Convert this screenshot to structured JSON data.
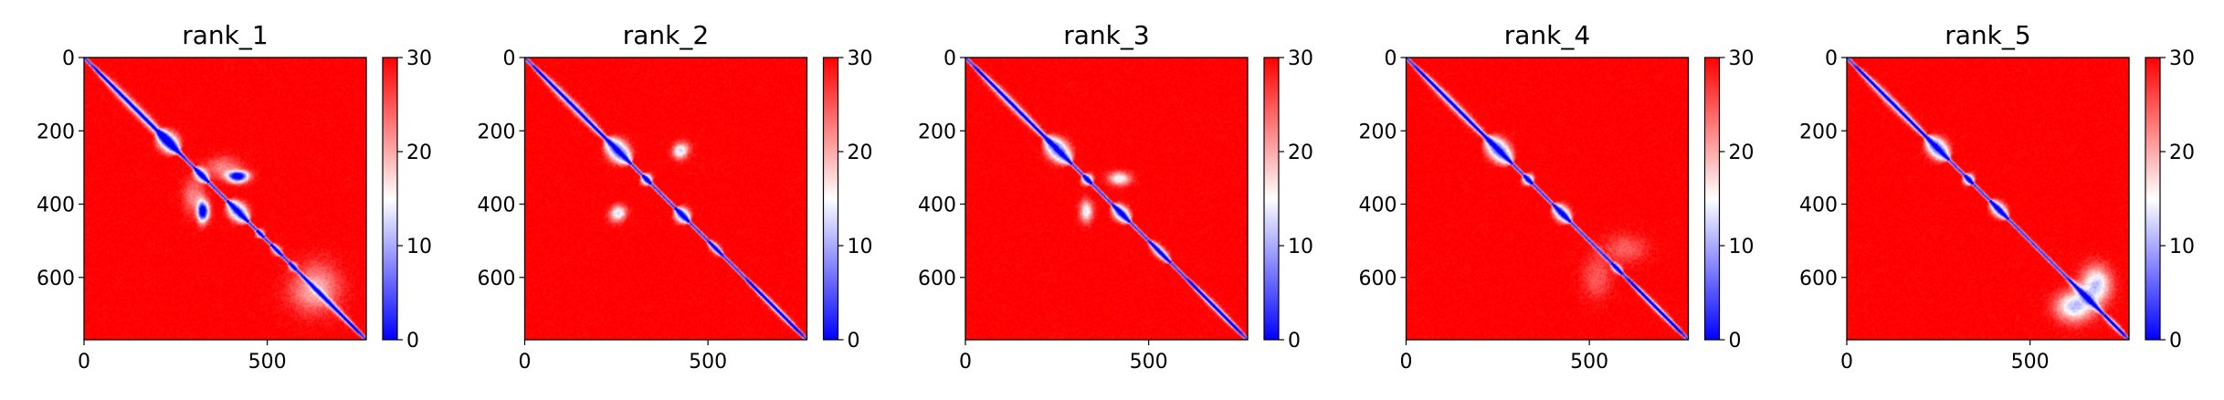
{
  "chart_data": {
    "type": "heatmap",
    "colormap": {
      "low": "#0000ff",
      "mid": "#ffffff",
      "high": "#ff0000",
      "vmin": 0,
      "vmax": 30,
      "ticks": [
        0,
        10,
        20,
        30
      ]
    },
    "matrix_size": 770,
    "x_ticks": [
      0,
      500
    ],
    "y_ticks": [
      0,
      200,
      400,
      600
    ],
    "panels": [
      {
        "title": "rank_1",
        "features": [
          {
            "a": 20,
            "b": 280,
            "width": 10,
            "strength": 0.7
          },
          {
            "a": 200,
            "b": 260,
            "width": 22,
            "strength": 1.0
          },
          {
            "a": 300,
            "b": 340,
            "width": 12,
            "strength": 0.95
          },
          {
            "a": 390,
            "b": 450,
            "width": 20,
            "strength": 1.0
          },
          {
            "a": 470,
            "b": 490,
            "width": 8,
            "strength": 0.8
          },
          {
            "a": 510,
            "b": 540,
            "width": 8,
            "strength": 0.8
          },
          {
            "a": 560,
            "b": 580,
            "width": 7,
            "strength": 0.85
          },
          {
            "a": 600,
            "b": 760,
            "width": 6,
            "strength": 0.6
          }
        ],
        "offdiag": [
          {
            "x": 420,
            "y": 320,
            "rx": 30,
            "ry": 12,
            "strength": 0.85
          },
          {
            "x": 330,
            "y": 420,
            "rx": 14,
            "ry": 26,
            "strength": 0.85
          },
          {
            "x": 380,
            "y": 300,
            "rx": 50,
            "ry": 30,
            "strength": 0.35
          },
          {
            "x": 620,
            "y": 640,
            "rx": 70,
            "ry": 60,
            "strength": 0.25
          }
        ]
      },
      {
        "title": "rank_2",
        "features": [
          {
            "a": 20,
            "b": 240,
            "width": 9,
            "strength": 0.65
          },
          {
            "a": 220,
            "b": 290,
            "width": 24,
            "strength": 1.0
          },
          {
            "a": 320,
            "b": 345,
            "width": 12,
            "strength": 0.95
          },
          {
            "a": 410,
            "b": 450,
            "width": 16,
            "strength": 1.0
          },
          {
            "a": 500,
            "b": 540,
            "width": 8,
            "strength": 0.8
          },
          {
            "a": 600,
            "b": 760,
            "width": 6,
            "strength": 0.6
          }
        ],
        "offdiag": [
          {
            "x": 430,
            "y": 250,
            "rx": 22,
            "ry": 22,
            "strength": 0.45
          },
          {
            "x": 260,
            "y": 420,
            "rx": 20,
            "ry": 18,
            "strength": 0.4
          }
        ]
      },
      {
        "title": "rank_3",
        "features": [
          {
            "a": 20,
            "b": 240,
            "width": 9,
            "strength": 0.65
          },
          {
            "a": 215,
            "b": 290,
            "width": 24,
            "strength": 1.0
          },
          {
            "a": 320,
            "b": 345,
            "width": 12,
            "strength": 0.95
          },
          {
            "a": 400,
            "b": 450,
            "width": 16,
            "strength": 1.0
          },
          {
            "a": 500,
            "b": 560,
            "width": 10,
            "strength": 0.85
          },
          {
            "a": 600,
            "b": 760,
            "width": 6,
            "strength": 0.6
          }
        ],
        "offdiag": [
          {
            "x": 420,
            "y": 330,
            "rx": 30,
            "ry": 18,
            "strength": 0.35
          },
          {
            "x": 330,
            "y": 420,
            "rx": 18,
            "ry": 30,
            "strength": 0.35
          }
        ]
      },
      {
        "title": "rank_4",
        "features": [
          {
            "a": 20,
            "b": 240,
            "width": 9,
            "strength": 0.65
          },
          {
            "a": 215,
            "b": 290,
            "width": 24,
            "strength": 1.0
          },
          {
            "a": 320,
            "b": 345,
            "width": 12,
            "strength": 0.95
          },
          {
            "a": 400,
            "b": 450,
            "width": 16,
            "strength": 1.0
          },
          {
            "a": 560,
            "b": 590,
            "width": 7,
            "strength": 0.85
          },
          {
            "a": 600,
            "b": 760,
            "width": 6,
            "strength": 0.6
          }
        ],
        "offdiag": [
          {
            "x": 600,
            "y": 520,
            "rx": 60,
            "ry": 40,
            "strength": 0.25
          }
        ]
      },
      {
        "title": "rank_5",
        "features": [
          {
            "a": 20,
            "b": 230,
            "width": 9,
            "strength": 0.65
          },
          {
            "a": 215,
            "b": 280,
            "width": 22,
            "strength": 1.0
          },
          {
            "a": 320,
            "b": 345,
            "width": 12,
            "strength": 0.95
          },
          {
            "a": 390,
            "b": 440,
            "width": 14,
            "strength": 1.0
          },
          {
            "a": 600,
            "b": 700,
            "width": 8,
            "strength": 0.55
          },
          {
            "a": 700,
            "b": 760,
            "width": 6,
            "strength": 0.6
          }
        ],
        "offdiag": [
          {
            "x": 620,
            "y": 680,
            "rx": 50,
            "ry": 40,
            "strength": 0.4
          },
          {
            "x": 680,
            "y": 620,
            "rx": 40,
            "ry": 50,
            "strength": 0.4
          }
        ]
      }
    ]
  }
}
